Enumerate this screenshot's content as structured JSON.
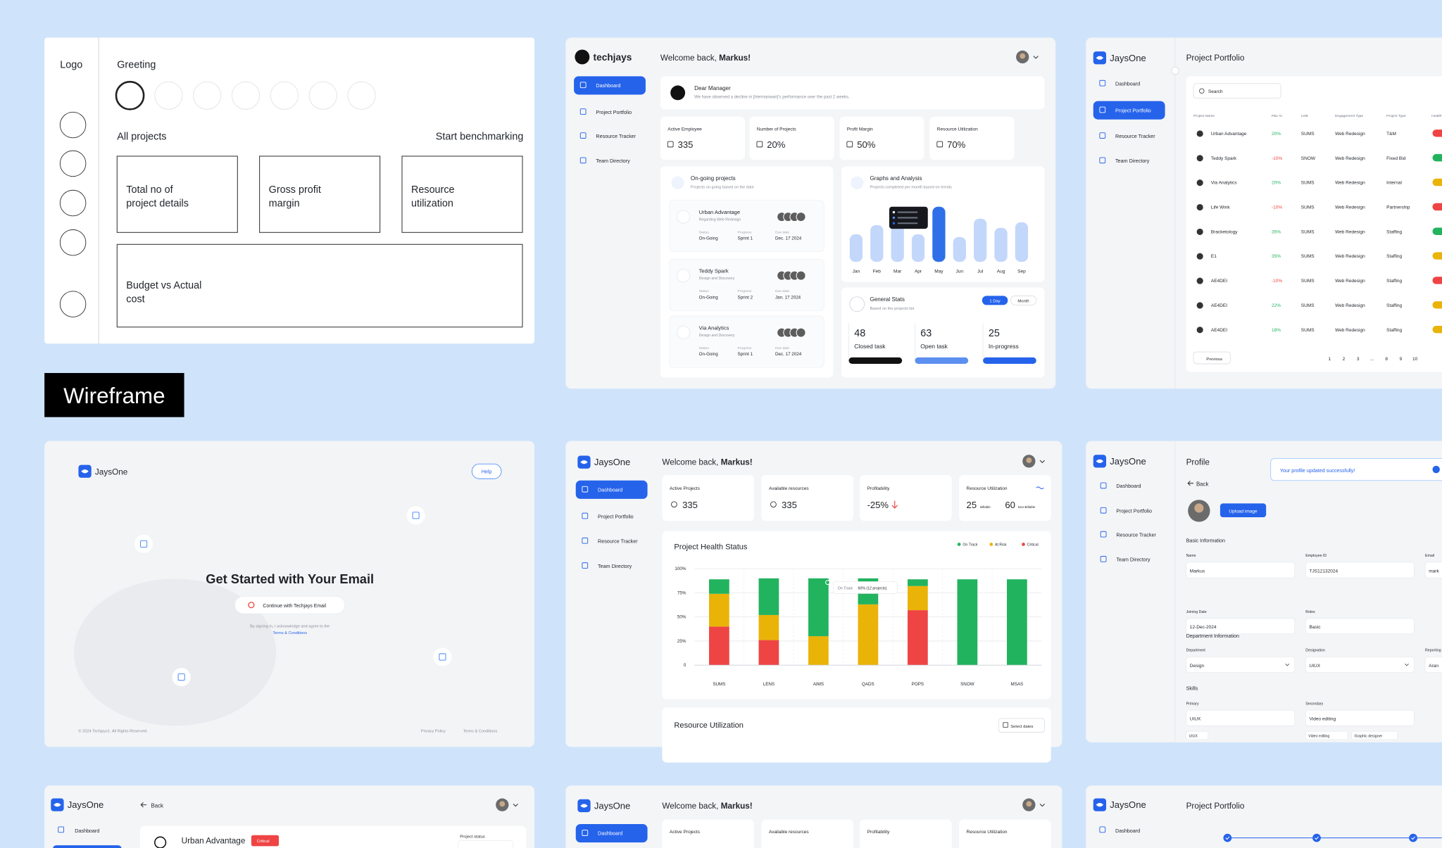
{
  "wireframe": {
    "logo": "Logo",
    "greeting": "Greeting",
    "all_projects": "All projects",
    "benchmark": "Start benchmarking",
    "cards": [
      [
        "Total no of",
        "project details"
      ],
      [
        "Gross profit",
        "margin"
      ],
      [
        "Resource",
        "utilization"
      ]
    ],
    "budget": [
      "Budget vs Actual",
      "cost"
    ],
    "label": "Wireframe"
  },
  "common": {
    "brand": "JaysOne",
    "welcome": "Welcome back,",
    "user": "Markus!",
    "nav": [
      "Dashboard",
      "Project Portfolio",
      "Resource Tracker",
      "Team Directory"
    ],
    "back": "Back"
  },
  "techjays_dashboard": {
    "brand": "techjays",
    "notice": {
      "title": "Dear Manager",
      "text": "We have observed a decline in [Hermanwan]'s performance over the past 2 weeks."
    },
    "stats": [
      {
        "label": "Active Employee",
        "value": "335"
      },
      {
        "label": "Number of Projects",
        "value": "20%"
      },
      {
        "label": "Profit Margin",
        "value": "50%"
      },
      {
        "label": "Resource Utilization",
        "value": "70%"
      }
    ],
    "ongoing": {
      "title": "On-going projects",
      "subtitle": "Projects on going based on the date",
      "fields": [
        "Status",
        "Progress",
        "Due date"
      ],
      "projects": [
        {
          "name": "Urban Advantage",
          "type": "Regarding Web Redesign",
          "status": "On-Going",
          "progress": "Sprint 1",
          "due": "Dec. 17 2024"
        },
        {
          "name": "Teddy Spark",
          "type": "Design and Discovery",
          "status": "On-Going",
          "progress": "Sprint 2",
          "due": "Jan. 17 2024"
        },
        {
          "name": "Via Analytics",
          "type": "Design and Discovery",
          "status": "On-Going",
          "progress": "Sprint 1",
          "due": "Dec. 17 2024"
        }
      ]
    },
    "graphs": {
      "type": "bar",
      "title": "Graphs and Analysis",
      "subtitle": "Projects completed per month based on trends",
      "categories": [
        "Jan",
        "Feb",
        "Mar",
        "Apr",
        "May",
        "Jun",
        "Jul",
        "Aug",
        "Sep"
      ],
      "values": [
        30,
        40,
        45,
        30,
        60,
        27,
        47,
        37,
        43
      ],
      "colors": [
        "#c3d7fb",
        "#c3d7fb",
        "#c3d7fb",
        "#c3d7fb",
        "#2f6fe8",
        "#c3d7fb",
        "#c3d7fb",
        "#c3d7fb",
        "#c3d7fb"
      ]
    },
    "general": {
      "title": "General Stats",
      "subtitle": "Based on the projects list",
      "tabs": [
        "1 Day",
        "Month"
      ],
      "items": [
        {
          "value": "48",
          "label": "Closed task",
          "color": "#111111"
        },
        {
          "value": "63",
          "label": "Open task",
          "color": "#5b8ff0"
        },
        {
          "value": "25",
          "label": "In-progress",
          "color": "#2563eb"
        }
      ]
    }
  },
  "portfolio": {
    "title": "Project Portfolio",
    "search": "Search",
    "columns": [
      "Project Name",
      "P&L %",
      "LOB",
      "Engagement Type",
      "Project Type",
      "Health"
    ],
    "rows": [
      [
        "Urban Advantage",
        "20%",
        "SUMS",
        "Web Redesign",
        "T&M"
      ],
      [
        "Teddy Spark",
        "-10%",
        "SNOW",
        "Web Redesign",
        "Fixed Bid"
      ],
      [
        "Via Analytics",
        "20%",
        "SUMS",
        "Web Redesign",
        "Internal"
      ],
      [
        "Life Wink",
        "-10%",
        "SUMS",
        "Web Redesign",
        "Partnership"
      ],
      [
        "Bracketology",
        "35%",
        "SUMS",
        "Web Redesign",
        "Staffing"
      ],
      [
        "E1",
        "35%",
        "SUMS",
        "Web Redesign",
        "Staffing"
      ],
      [
        "AE4DEI",
        "-10%",
        "SUMS",
        "Web Redesign",
        "Staffing"
      ],
      [
        "AE4DEI",
        "22%",
        "SUMS",
        "Web Redesign",
        "Staffing"
      ],
      [
        "AE4DEI",
        "18%",
        "SUMS",
        "Web Redesign",
        "Staffing"
      ]
    ],
    "health": [
      "#ef4444",
      "#22b35e",
      "#eab308",
      "#ef4444",
      "#22b35e",
      "#eab308",
      "#ef4444",
      "#eab308",
      "#eab308"
    ],
    "previous": "Previous",
    "pages": [
      "1",
      "2",
      "3",
      "...",
      "8",
      "9",
      "10"
    ]
  },
  "signin": {
    "help": "Help",
    "heading": "Get Started with Your Email",
    "button": "Continue with Techjays Email",
    "note": "By signing in, I acknowledge and agree to the",
    "link": "Terms & Conditions",
    "copyright": "© 2024 Techjays1. All Rights Reserved.",
    "privacy": "Privacy Policy",
    "terms": "Terms & Conditions"
  },
  "health_dashboard": {
    "stats": [
      {
        "label": "Active Projects",
        "value": "335"
      },
      {
        "label": "Available resources",
        "value": "335"
      },
      {
        "label": "Profitability",
        "value": "-25%"
      }
    ],
    "utilization": {
      "label": "Resource Utilization",
      "billable": "25",
      "billable_label": "Billable",
      "non_billable": "60",
      "non_billable_label": "Non-Billable"
    },
    "chart": {
      "type": "bar",
      "title": "Project Health Status",
      "categories": [
        "SUMS",
        "LENS",
        "AIMS",
        "QADS",
        "POPS",
        "SNOW",
        "MSAS"
      ],
      "series": [
        {
          "name": "On Track",
          "color": "#22b35e",
          "values": [
            15,
            38,
            60,
            27,
            7,
            89,
            89
          ]
        },
        {
          "name": "At Risk",
          "color": "#eab308",
          "values": [
            34,
            26,
            30,
            63,
            25,
            0,
            0
          ]
        },
        {
          "name": "Critical",
          "color": "#ef4444",
          "values": [
            40,
            26,
            0,
            0,
            57,
            0,
            0
          ]
        }
      ],
      "ylim": [
        0,
        100
      ],
      "yticks": [
        0,
        {
          "value": 25,
          "label": "25%"
        },
        {
          "value": 50,
          "label": "50%"
        },
        {
          "value": 75,
          "label": "75%"
        },
        {
          "value": 100,
          "label": "100%"
        }
      ],
      "grid": true,
      "tooltip": {
        "name": "On Track",
        "value": "60% (12 projects)"
      }
    },
    "resource": {
      "title": "Resource Utilization",
      "select": "Select dates"
    }
  },
  "profile": {
    "title": "Profile",
    "upload": "Upload image",
    "toast": "Your profile updated successfully!",
    "basic_title": "Basic Information",
    "basic": [
      {
        "label": "Name",
        "value": "Markus"
      },
      {
        "label": "Employee ID",
        "value": "TJS12132024"
      },
      {
        "label": "Email",
        "value": "mark"
      }
    ],
    "joining": [
      {
        "label": "Joining Date",
        "value": "12-Dec-2024"
      },
      {
        "label": "Roles",
        "value": "Basic"
      }
    ],
    "dept_title": "Department Information",
    "dept": [
      {
        "label": "Department",
        "value": "Design"
      },
      {
        "label": "Designation",
        "value": "UIUX"
      },
      {
        "label": "Reporting",
        "value": "Aran"
      }
    ],
    "skills_title": "Skills",
    "skills": [
      {
        "label": "Primary",
        "value": "UIUX"
      },
      {
        "label": "Secondary",
        "value": "Video editing"
      }
    ],
    "chips": [
      "UIUX",
      "Video editing",
      "Graphic designer"
    ]
  },
  "row3": {
    "project": {
      "name": "Urban Advantage",
      "badge": "Critical",
      "status_label": "Project status"
    },
    "stat_labels": [
      "Active Projects",
      "Available resources",
      "Profitability",
      "Resource Utilization"
    ]
  }
}
